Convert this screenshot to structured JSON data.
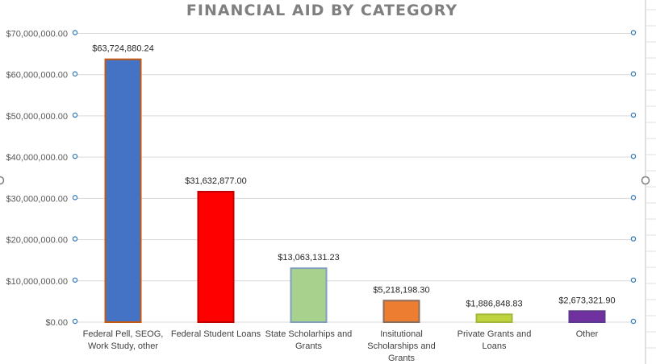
{
  "chart_data": {
    "type": "bar",
    "title": "FINANCIAL AID BY CATEGORY",
    "xlabel": "",
    "ylabel": "",
    "ylim": [
      0,
      70000000
    ],
    "yticks": [
      "$0.00",
      "$10,000,000.00",
      "$20,000,000.00",
      "$30,000,000.00",
      "$40,000,000.00",
      "$50,000,000.00",
      "$60,000,000.00",
      "$70,000,000.00"
    ],
    "categories": [
      [
        "Federal Pell, SEOG,",
        "Work Study, other"
      ],
      [
        "Federal Student Loans"
      ],
      [
        "State Scholarhips and",
        "Grants"
      ],
      [
        "Insitutional",
        "Scholarships and",
        "Grants"
      ],
      [
        "Private Grants and",
        "Loans"
      ],
      [
        "Other"
      ]
    ],
    "values": [
      63724880.24,
      31632877.0,
      13063131.23,
      5218198.3,
      1886848.83,
      2673321.9
    ],
    "data_labels": [
      "$63,724,880.24",
      "$31,632,877.00",
      "$13,063,131.23",
      "$5,218,198.30",
      "$1,886,848.83",
      "$2,673,321.90"
    ],
    "colors": [
      "#4472c4",
      "#ff0000",
      "#a9d18e",
      "#ed7d31",
      "#bfd33f",
      "#7030a0"
    ],
    "bar_outlines": [
      "#c55a11",
      "#c00000",
      "#7f9fbf",
      "#8c6d5a",
      "#a6b83a",
      "#5b3a8c"
    ],
    "grid": true,
    "legend": "none"
  }
}
